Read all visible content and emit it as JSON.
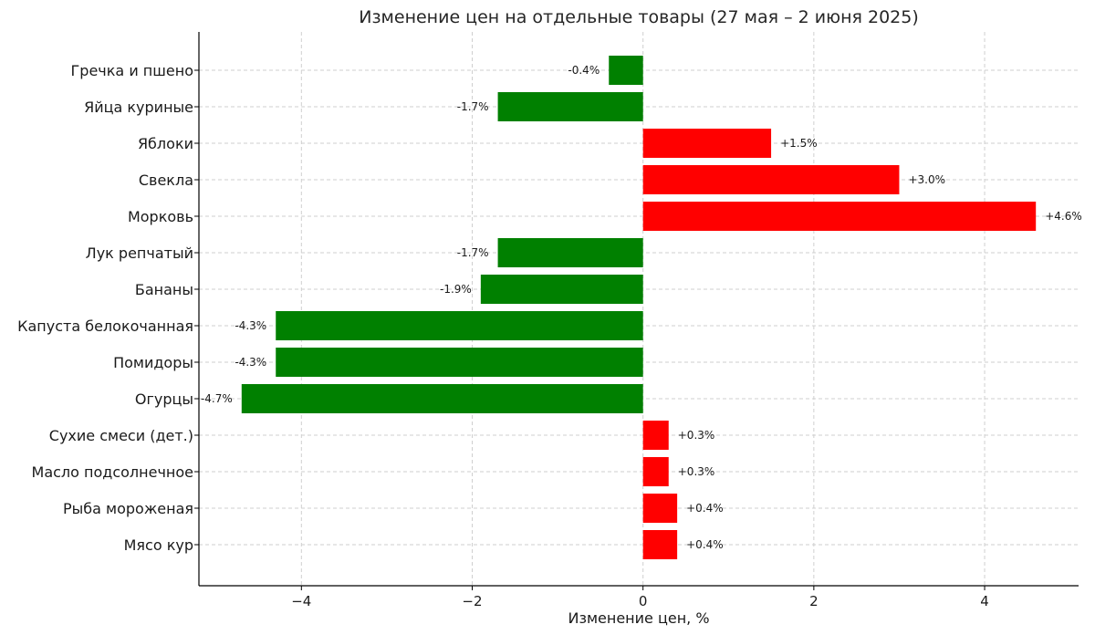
{
  "chart_data": {
    "type": "bar",
    "orientation": "horizontal",
    "title": "Изменение цен на отдельные товары (27 мая – 2 июня 2025)",
    "xlabel": "Изменение цен, %",
    "ylabel": "",
    "xlim": [
      -5.2,
      5.1
    ],
    "xticks": [
      -4,
      -2,
      0,
      2,
      4
    ],
    "xtick_labels": [
      "−4",
      "−2",
      "0",
      "2",
      "4"
    ],
    "grid": true,
    "categories": [
      "Гречка и пшено",
      "Яйца куриные",
      "Яблоки",
      "Свекла",
      "Морковь",
      "Лук репчатый",
      "Бананы",
      "Капуста белокочанная",
      "Помидоры",
      "Огурцы",
      "Сухие смеси (дет.)",
      "Масло подсолнечное",
      "Рыба мороженая",
      "Мясо кур"
    ],
    "values": [
      -0.4,
      -1.7,
      1.5,
      3.0,
      4.6,
      -1.7,
      -1.9,
      -4.3,
      -4.3,
      -4.7,
      0.3,
      0.3,
      0.4,
      0.4
    ],
    "data_labels": [
      "-0.4%",
      "-1.7%",
      "+1.5%",
      "+3.0%",
      "+4.6%",
      "-1.7%",
      "-1.9%",
      "-4.3%",
      "-4.3%",
      "-4.7%",
      "+0.3%",
      "+0.3%",
      "+0.4%",
      "+0.4%"
    ],
    "colors": {
      "negative": "#008000",
      "positive": "#ff0000"
    }
  }
}
